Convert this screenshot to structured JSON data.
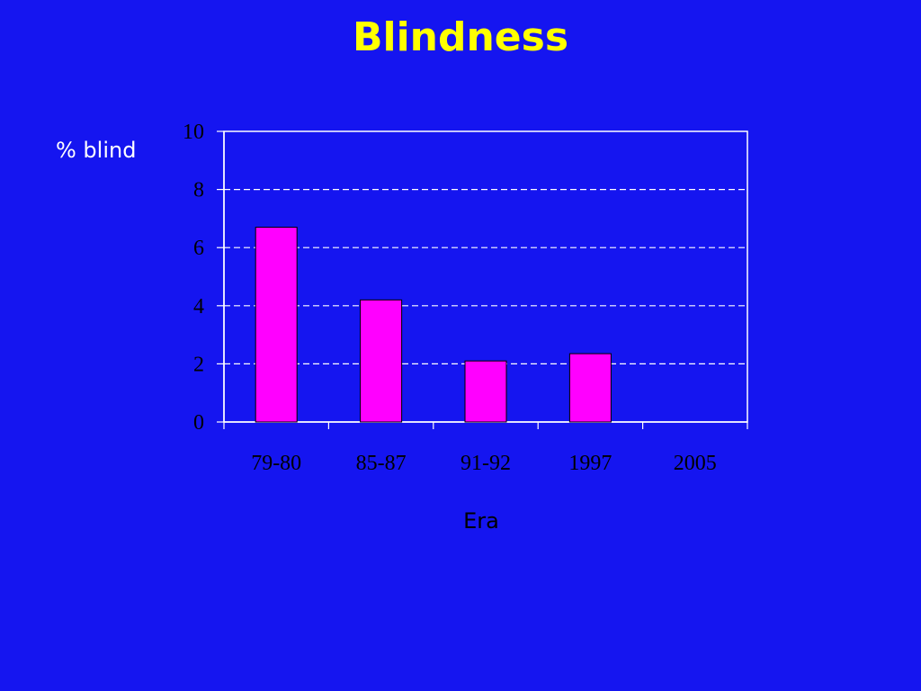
{
  "slide": {
    "title": "Blindness",
    "background_color": "#1515f0",
    "title_color": "#ffff00"
  },
  "chart_data": {
    "type": "bar",
    "categories": [
      "79-80",
      "85-87",
      "91-92",
      "1997",
      "2005"
    ],
    "values": [
      6.7,
      4.2,
      2.1,
      2.35,
      0
    ],
    "xlabel": "Era",
    "ylabel": "% blind",
    "ylim": [
      0,
      10
    ],
    "yticks": [
      "0",
      "2",
      "4",
      "6",
      "8",
      "10"
    ],
    "grid": true,
    "bar_color": "#ff00ff"
  }
}
